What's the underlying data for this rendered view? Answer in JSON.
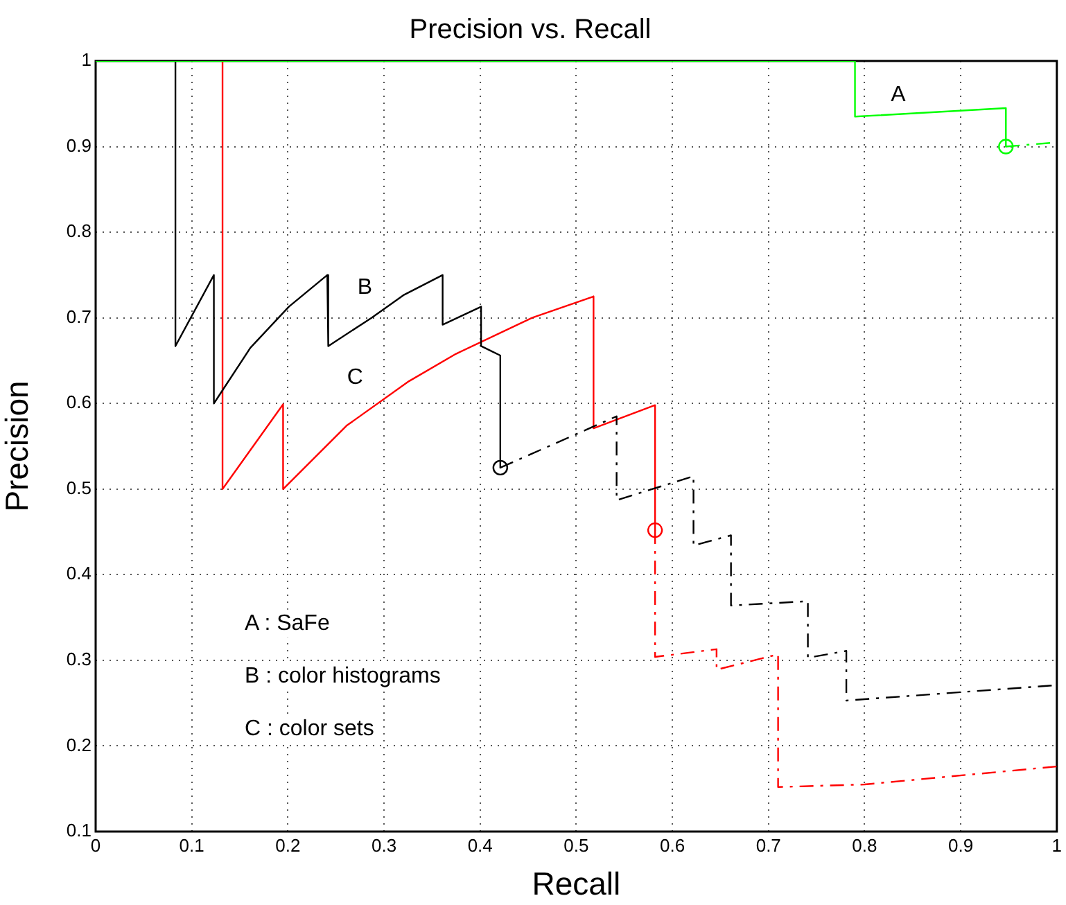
{
  "chart_data": {
    "type": "line",
    "title": "Precision vs. Recall",
    "xlabel": "Recall",
    "ylabel": "Precision",
    "xlim": [
      0,
      1
    ],
    "xticks": [
      0,
      0.1,
      0.2,
      0.3,
      0.4,
      0.5,
      0.6,
      0.7,
      0.8,
      0.9,
      1
    ],
    "ylim": [
      0.1,
      1
    ],
    "yticks": [
      0.1,
      0.2,
      0.3,
      0.4,
      0.5,
      0.6,
      0.7,
      0.8,
      0.9,
      1
    ],
    "grid": true,
    "legend": false,
    "marker": "none",
    "series": [
      {
        "name": "A",
        "color": "#00ff00",
        "line_style": "solid",
        "x": [
          0,
          0.79,
          0.79,
          0.947,
          0.947
        ],
        "values": [
          1,
          1,
          0.935,
          0.945,
          0.9
        ]
      },
      {
        "color": "#00ff00",
        "line_style": "dashed",
        "x": [
          0.947,
          1
        ],
        "values": [
          0.9,
          0.905
        ]
      },
      {
        "name": "B",
        "color": "#000000",
        "line_style": "solid",
        "x": [
          0.083,
          0.083,
          0.123,
          0.123,
          0.161,
          0.201,
          0.241,
          0.242,
          0.287,
          0.321,
          0.361,
          0.361,
          0.401,
          0.401,
          0.421,
          0.421
        ],
        "values": [
          1,
          0.667,
          0.75,
          0.6,
          0.665,
          0.713,
          0.75,
          0.667,
          0.7,
          0.727,
          0.75,
          0.692,
          0.713,
          0.667,
          0.656,
          0.525
        ]
      },
      {
        "color": "#000000",
        "line_style": "dashed",
        "x": [
          0.421,
          0.542,
          0.542,
          0.622,
          0.622,
          0.661,
          0.661,
          0.741,
          0.741,
          0.781,
          0.781,
          1
        ],
        "values": [
          0.525,
          0.585,
          0.487,
          0.515,
          0.434,
          0.446,
          0.364,
          0.369,
          0.303,
          0.311,
          0.253,
          0.271
        ]
      },
      {
        "name": "C",
        "color": "#ff0000",
        "line_style": "solid",
        "x": [
          0.132,
          0.132,
          0.195,
          0.195,
          0.261,
          0.326,
          0.375,
          0.454,
          0.518,
          0.518,
          0.582,
          0.582
        ],
        "values": [
          1,
          0.5,
          0.599,
          0.5,
          0.574,
          0.626,
          0.658,
          0.7,
          0.725,
          0.571,
          0.598,
          0.452
        ]
      },
      {
        "color": "#ff0000",
        "line_style": "dashed",
        "x": [
          0.582,
          0.582,
          0.646,
          0.646,
          0.71,
          0.71,
          0.8,
          1
        ],
        "values": [
          0.452,
          0.304,
          0.313,
          0.289,
          0.307,
          0.152,
          0.155,
          0.176
        ]
      },
      {
        "type": "scatter",
        "marker": "circle",
        "x": [
          0.947,
          0.421,
          0.582
        ],
        "values": [
          0.9,
          0.525,
          0.452
        ],
        "colors": [
          "#00ff00",
          "#000000",
          "#ff0000"
        ]
      }
    ],
    "annotations": [
      "A : SaFe",
      "B : color histograms",
      "C : color sets"
    ]
  }
}
